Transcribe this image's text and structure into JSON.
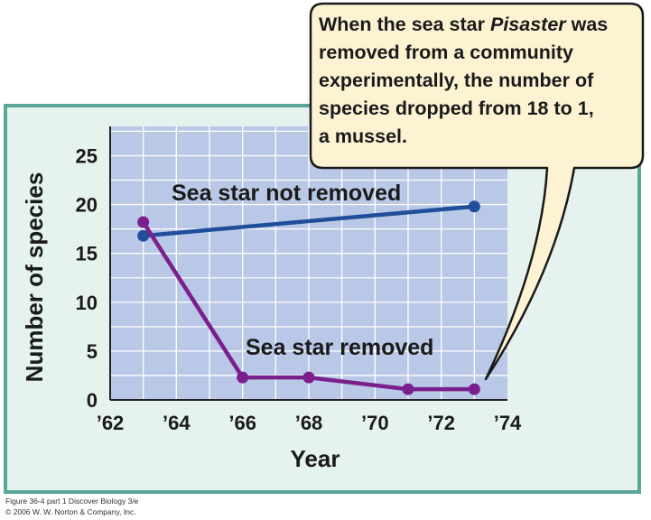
{
  "chart_data": {
    "type": "line",
    "ylabel": "Number of species",
    "xlabel": "Year",
    "x_tick_labels": [
      "’62",
      "’64",
      "’66",
      "’68",
      "’70",
      "’72",
      "’74"
    ],
    "y_tick_labels": [
      "0",
      "5",
      "10",
      "15",
      "20",
      "25"
    ],
    "xlim": [
      1962,
      1974
    ],
    "ylim": [
      0,
      28
    ],
    "grid": true,
    "series": [
      {
        "name": "Sea star not removed",
        "color": "#1f4e9a",
        "x": [
          1963,
          1973
        ],
        "values": [
          16.8,
          19.8
        ]
      },
      {
        "name": "Sea star removed",
        "color": "#7a1f8c",
        "x": [
          1963,
          1966,
          1968,
          1971,
          1973
        ],
        "values": [
          18.2,
          2.3,
          2.3,
          1.1,
          1.1
        ]
      }
    ],
    "annotation": {
      "before_italic": "When the sea star ",
      "italic": "Pisaster",
      "after_italic": " was",
      "lines": [
        "removed from a community",
        "experimentally, the number of",
        "species dropped from 18 to 1,",
        "a mussel."
      ]
    }
  },
  "credit": {
    "line1": "Figure 36-4 part 1  Discover Biology 3/e",
    "line2": "© 2006 W. W. Norton & Company, Inc."
  },
  "colors": {
    "plot_bg": "#b8c8e6",
    "panel_bg": "#e6f2ee",
    "panel_border": "#5aa699",
    "callout_bg": "#fdf3d3"
  }
}
